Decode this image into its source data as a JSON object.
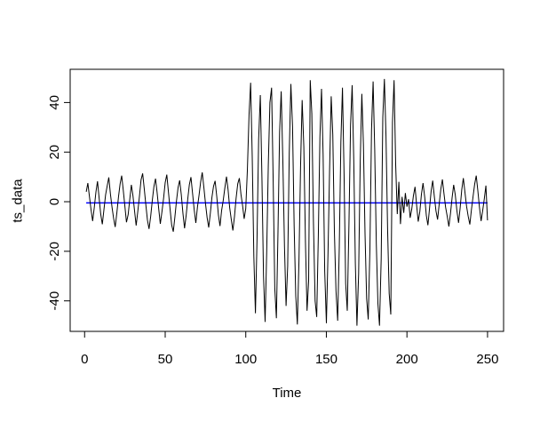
{
  "figure": {
    "background": "#ffffff",
    "box_color": "#000000",
    "text_color": "#000000"
  },
  "chart_data": {
    "type": "line",
    "title": "",
    "xlabel": "Time",
    "ylabel": "ts_data",
    "grid": false,
    "legend": "none",
    "x_ticks": [
      0,
      50,
      100,
      150,
      200,
      250
    ],
    "y_ticks": [
      -40,
      -20,
      0,
      20,
      40
    ],
    "x_range": [
      -8.96,
      259.96
    ],
    "y_range": [
      -52.3,
      53.4
    ],
    "x_start": 1,
    "x_step": 1,
    "series_color": "#000000",
    "mean_line": {
      "value": -0.5,
      "color": "#0000ff",
      "x_from": 1,
      "x_to": 250
    },
    "values": [
      4.0,
      7.5,
      2.1,
      -3.2,
      -7.8,
      -2.5,
      3.9,
      8.2,
      1.5,
      -5.0,
      -9.1,
      -3.3,
      2.8,
      6.4,
      9.8,
      3.2,
      -2.1,
      -6.7,
      -10.2,
      -4.4,
      1.9,
      7.1,
      10.5,
      4.6,
      -1.8,
      -8.3,
      -5.2,
      0.9,
      6.8,
      2.4,
      -3.7,
      -9.6,
      -4.1,
      2.2,
      8.8,
      11.4,
      5.3,
      -1.2,
      -7.4,
      -11.0,
      -5.8,
      0.6,
      6.1,
      9.3,
      3.7,
      -2.9,
      -8.9,
      -3.9,
      1.4,
      7.7,
      10.9,
      4.1,
      -2.6,
      -9.4,
      -12.1,
      -6.2,
      0.3,
      5.7,
      8.6,
      2.9,
      -4.8,
      -10.7,
      -5.5,
      1.1,
      6.9,
      9.9,
      3.4,
      -3.4,
      -8.6,
      -2.2,
      2.6,
      7.9,
      11.8,
      5.9,
      -0.8,
      -6.4,
      -10.4,
      -4.7,
      1.7,
      6.2,
      8.4,
      2.0,
      -5.3,
      -9.8,
      -3.6,
      0.4,
      5.4,
      10.1,
      4.8,
      -2.4,
      -7.1,
      -11.6,
      -6.0,
      1.3,
      7.3,
      9.5,
      3.0,
      -1.5,
      -6.9,
      -2.8,
      12.5,
      35.0,
      48.0,
      18.0,
      -22.0,
      -45.0,
      -15.0,
      25.0,
      43.0,
      10.0,
      -30.0,
      -48.5,
      -20.0,
      15.0,
      40.0,
      46.0,
      8.0,
      -35.0,
      -47.0,
      -12.0,
      28.0,
      44.5,
      16.0,
      -18.0,
      -42.0,
      -26.0,
      20.0,
      47.5,
      30.0,
      -10.0,
      -38.0,
      -49.5,
      -24.0,
      14.0,
      41.0,
      22.0,
      -16.0,
      -44.0,
      -32.0,
      49.0,
      35.5,
      -8.0,
      -40.0,
      -46.5,
      -14.0,
      26.0,
      45.5,
      19.0,
      -28.0,
      -49.0,
      -21.0,
      13.0,
      42.5,
      27.0,
      -12.0,
      -36.0,
      -48.0,
      -18.5,
      24.0,
      46.0,
      11.0,
      -33.0,
      -44.0,
      -9.0,
      31.0,
      47.0,
      17.0,
      -25.0,
      -50.0,
      -29.0,
      16.5,
      43.5,
      23.0,
      -13.0,
      -39.0,
      -47.5,
      -19.0,
      29.0,
      48.5,
      21.0,
      -17.0,
      -41.0,
      -50.0,
      -23.0,
      34.0,
      49.5,
      26.5,
      -11.0,
      -37.0,
      -45.5,
      32.0,
      49.0,
      15.0,
      -5.0,
      8.0,
      -9.0,
      2.0,
      -4.5,
      3.5,
      -2.0,
      1.0,
      -6.5,
      -3.0,
      2.5,
      6.0,
      -1.5,
      -8.0,
      -4.0,
      3.0,
      7.5,
      1.8,
      -5.5,
      -9.5,
      -2.8,
      4.2,
      8.5,
      2.2,
      -3.8,
      -7.2,
      -1.0,
      5.0,
      9.0,
      3.2,
      -2.2,
      -6.0,
      -10.0,
      -4.8,
      1.5,
      6.8,
      2.8,
      -3.5,
      -8.5,
      -2.5,
      4.8,
      9.5,
      3.8,
      -1.8,
      -5.8,
      -9.2,
      -3.2,
      2.0,
      7.0,
      10.5,
      4.5,
      -2.5,
      -7.8,
      -3.5,
      1.2,
      6.5,
      -7.5
    ]
  }
}
